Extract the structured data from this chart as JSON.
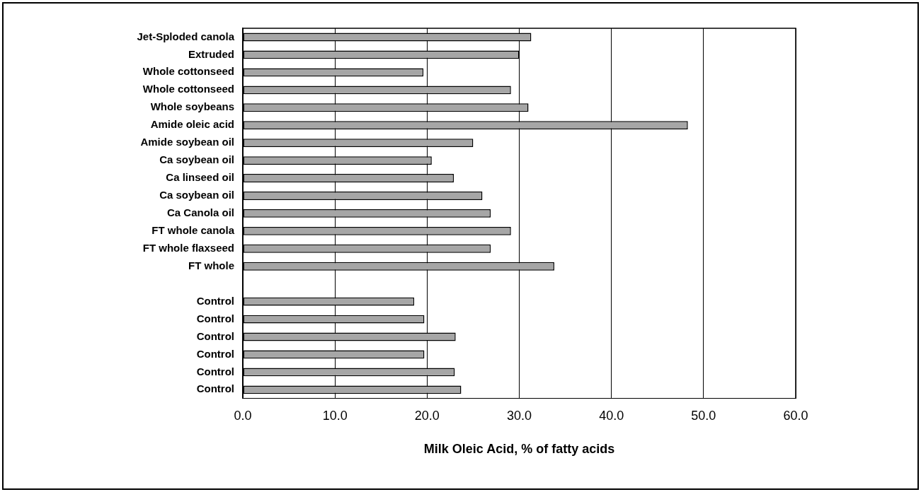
{
  "chart_data": {
    "type": "bar",
    "orientation": "horizontal",
    "xlabel": "Milk Oleic Acid, % of fatty acids",
    "categories": [
      "Jet-Sploded canola",
      "Extruded",
      "Whole cottonseed",
      "Whole cottonseed",
      "Whole soybeans",
      "Amide oleic acid",
      "Amide soybean oil",
      "Ca soybean oil",
      "Ca linseed oil",
      "Ca soybean oil",
      "Ca Canola oil",
      "FT whole canola",
      "FT whole flaxseed",
      "FT whole",
      null,
      "Control",
      "Control",
      "Control",
      "Control",
      "Control",
      "Control"
    ],
    "values": [
      31.3,
      30.0,
      19.6,
      29.1,
      31.0,
      48.3,
      25.0,
      20.5,
      22.9,
      26.0,
      26.9,
      29.1,
      26.9,
      33.8,
      null,
      18.6,
      19.7,
      23.1,
      19.7,
      23.0,
      23.7
    ],
    "color": "#a6a6a6",
    "xlim": [
      0,
      60
    ],
    "xticks": [
      {
        "value": 0,
        "label": "0.0"
      },
      {
        "value": 10,
        "label": "10.0"
      },
      {
        "value": 20,
        "label": "20.0"
      },
      {
        "value": 30,
        "label": "30.0"
      },
      {
        "value": 40,
        "label": "40.0"
      },
      {
        "value": 50,
        "label": "50.0"
      },
      {
        "value": 60,
        "label": "60.0"
      }
    ],
    "grid": "x",
    "legend": false
  }
}
